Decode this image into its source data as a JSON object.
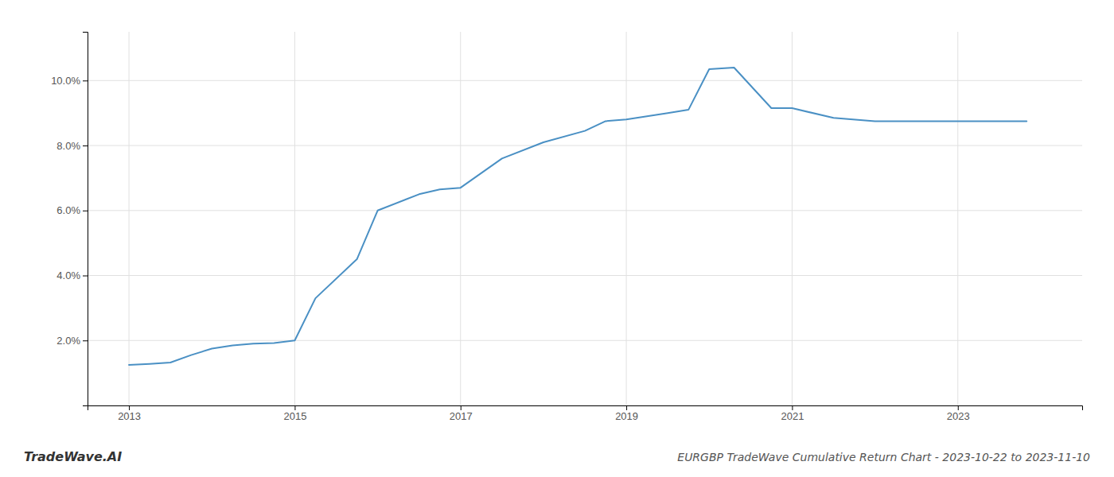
{
  "chart_data": {
    "type": "line",
    "title": "EURGBP TradeWave Cumulative Return Chart - 2023-10-22 to 2023-11-10",
    "annotations": [
      "TradeWave.AI"
    ],
    "color": "#4a90c4",
    "grid": true,
    "x": [
      2013.0,
      2013.25,
      2013.5,
      2013.75,
      2014.0,
      2014.25,
      2014.5,
      2014.75,
      2015.0,
      2015.25,
      2015.75,
      2016.0,
      2016.5,
      2016.75,
      2017.0,
      2017.5,
      2018.0,
      2018.5,
      2018.75,
      2019.0,
      2019.5,
      2019.75,
      2020.0,
      2020.3,
      2020.75,
      2021.0,
      2021.5,
      2022.0,
      2022.5,
      2023.0,
      2023.83
    ],
    "values": [
      1.25,
      1.28,
      1.32,
      1.55,
      1.75,
      1.85,
      1.9,
      1.92,
      2.0,
      3.3,
      4.5,
      6.0,
      6.5,
      6.65,
      6.7,
      7.6,
      8.1,
      8.45,
      8.75,
      8.8,
      9.0,
      9.1,
      10.35,
      10.4,
      9.15,
      9.15,
      8.85,
      8.75,
      8.75,
      8.75,
      8.75
    ],
    "xlim": [
      2012.5,
      2024.5
    ],
    "ylim": [
      0.0,
      11.5
    ],
    "xticks": [
      2013,
      2015,
      2017,
      2019,
      2021,
      2023
    ],
    "yticks": [
      {
        "value": 2.0,
        "label": "2.0%"
      },
      {
        "value": 4.0,
        "label": "4.0%"
      },
      {
        "value": 6.0,
        "label": "6.0%"
      },
      {
        "value": 8.0,
        "label": "8.0%"
      },
      {
        "value": 10.0,
        "label": "10.0%"
      }
    ]
  }
}
